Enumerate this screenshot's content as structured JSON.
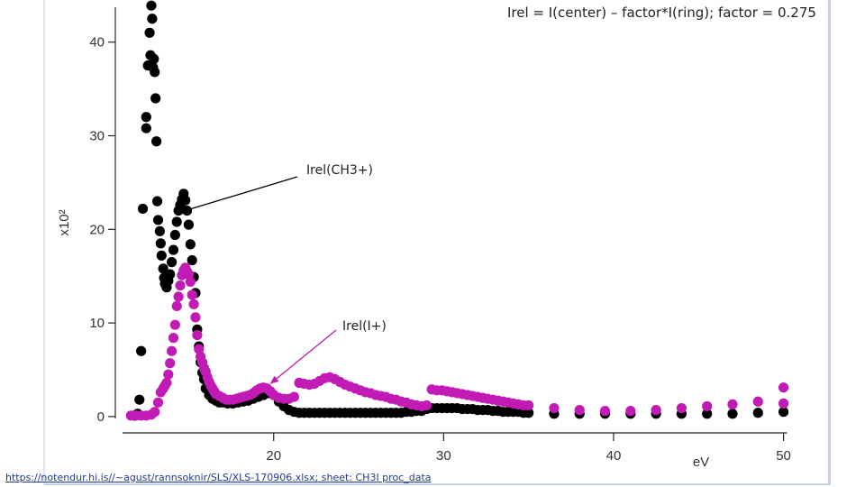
{
  "title": "Irel = I(center) – factor*I(ring); factor = 0.275",
  "footer_link": "https://notendur.hi.is//~agust/rannsoknir/SLS/XLS-170906.xlsx; sheet: CH3I proc_data",
  "chart_data": {
    "type": "scatter",
    "title": "Irel = I(center) – factor*I(ring); factor = 0.275",
    "xlabel": "eV",
    "ylabel": "x10²",
    "y_multiplier": "x10²",
    "xlim": [
      11,
      50.5
    ],
    "ylim": [
      -0.3,
      44.5
    ],
    "x_ticks": [
      20,
      30,
      40,
      50
    ],
    "y_ticks": [
      0,
      10,
      20,
      30,
      40
    ],
    "grid": false,
    "annotations": [
      {
        "text": "Irel(CH3+)",
        "points_to": [
          14.6,
          21.9
        ]
      },
      {
        "text": "Irel(I+)",
        "points_to": [
          19.8,
          3.5
        ]
      }
    ],
    "series": [
      {
        "name": "Irel(CH3+)",
        "color": "#000000",
        "points": [
          [
            11.8,
            0.1
          ],
          [
            12.0,
            0.3
          ],
          [
            12.1,
            1.8
          ],
          [
            12.2,
            7.0
          ],
          [
            12.3,
            22.2
          ],
          [
            12.5,
            30.8
          ],
          [
            12.5,
            32.0
          ],
          [
            12.6,
            37.5
          ],
          [
            12.7,
            41.0
          ],
          [
            12.75,
            38.6
          ],
          [
            12.8,
            43.9
          ],
          [
            12.85,
            42.5
          ],
          [
            12.9,
            37.3
          ],
          [
            12.95,
            38.2
          ],
          [
            13.0,
            36.8
          ],
          [
            13.05,
            34.0
          ],
          [
            13.1,
            29.4
          ],
          [
            13.15,
            23.0
          ],
          [
            13.2,
            21.0
          ],
          [
            13.3,
            19.8
          ],
          [
            13.35,
            18.5
          ],
          [
            13.4,
            17.2
          ],
          [
            13.5,
            15.8
          ],
          [
            13.55,
            14.8
          ],
          [
            13.6,
            14.2
          ],
          [
            13.7,
            13.8
          ],
          [
            13.8,
            14.5
          ],
          [
            13.9,
            15.2
          ],
          [
            14.0,
            16.5
          ],
          [
            14.1,
            17.8
          ],
          [
            14.2,
            19.4
          ],
          [
            14.3,
            20.8
          ],
          [
            14.4,
            22.0
          ],
          [
            14.5,
            22.6
          ],
          [
            14.6,
            23.2
          ],
          [
            14.7,
            23.8
          ],
          [
            14.8,
            23.1
          ],
          [
            14.9,
            22.0
          ],
          [
            15.0,
            20.5
          ],
          [
            15.1,
            18.4
          ],
          [
            15.2,
            16.7
          ],
          [
            15.3,
            14.9
          ],
          [
            15.4,
            13.2
          ],
          [
            15.5,
            9.3
          ],
          [
            15.6,
            7.5
          ],
          [
            15.7,
            5.8
          ],
          [
            15.8,
            4.7
          ],
          [
            15.9,
            4.0
          ],
          [
            16.0,
            3.0
          ],
          [
            16.2,
            2.3
          ],
          [
            16.4,
            1.9
          ],
          [
            16.6,
            1.7
          ],
          [
            16.8,
            1.5
          ],
          [
            17.0,
            1.5
          ],
          [
            17.3,
            1.4
          ],
          [
            17.6,
            1.4
          ],
          [
            17.9,
            1.5
          ],
          [
            18.2,
            1.6
          ],
          [
            18.5,
            1.7
          ],
          [
            18.8,
            1.9
          ],
          [
            19.1,
            2.1
          ],
          [
            19.4,
            2.3
          ],
          [
            19.7,
            2.5
          ],
          [
            20.0,
            2.3
          ],
          [
            20.3,
            1.6
          ],
          [
            20.6,
            1.1
          ],
          [
            20.9,
            0.7
          ],
          [
            21.2,
            0.5
          ],
          [
            21.5,
            0.4
          ],
          [
            21.8,
            0.4
          ],
          [
            22.1,
            0.4
          ],
          [
            22.4,
            0.4
          ],
          [
            22.7,
            0.4
          ],
          [
            23.0,
            0.4
          ],
          [
            23.3,
            0.4
          ],
          [
            23.6,
            0.4
          ],
          [
            23.9,
            0.4
          ],
          [
            24.2,
            0.4
          ],
          [
            24.5,
            0.4
          ],
          [
            24.8,
            0.4
          ],
          [
            25.1,
            0.4
          ],
          [
            25.4,
            0.4
          ],
          [
            25.7,
            0.4
          ],
          [
            26.0,
            0.4
          ],
          [
            26.3,
            0.4
          ],
          [
            26.6,
            0.4
          ],
          [
            26.9,
            0.4
          ],
          [
            27.2,
            0.4
          ],
          [
            27.5,
            0.4
          ],
          [
            27.8,
            0.5
          ],
          [
            28.1,
            0.5
          ],
          [
            28.4,
            0.6
          ],
          [
            28.7,
            0.6
          ],
          [
            29.0,
            0.8
          ],
          [
            29.3,
            0.9
          ],
          [
            29.6,
            0.9
          ],
          [
            29.9,
            0.9
          ],
          [
            30.2,
            0.9
          ],
          [
            30.5,
            0.9
          ],
          [
            30.8,
            0.9
          ],
          [
            31.1,
            0.8
          ],
          [
            31.4,
            0.8
          ],
          [
            31.7,
            0.8
          ],
          [
            32.0,
            0.7
          ],
          [
            32.3,
            0.7
          ],
          [
            32.6,
            0.7
          ],
          [
            32.9,
            0.6
          ],
          [
            33.2,
            0.6
          ],
          [
            33.5,
            0.5
          ],
          [
            33.8,
            0.5
          ],
          [
            34.1,
            0.5
          ],
          [
            34.4,
            0.5
          ],
          [
            34.7,
            0.4
          ],
          [
            35.0,
            0.4
          ],
          [
            36.5,
            0.3
          ],
          [
            38.0,
            0.3
          ],
          [
            39.5,
            0.3
          ],
          [
            41.0,
            0.3
          ],
          [
            42.5,
            0.3
          ],
          [
            44.0,
            0.3
          ],
          [
            45.5,
            0.3
          ],
          [
            47.0,
            0.3
          ],
          [
            48.5,
            0.4
          ],
          [
            50.0,
            0.5
          ]
        ]
      },
      {
        "name": "Irel(I+)",
        "color": "#c21ab5",
        "points": [
          [
            11.6,
            0.1
          ],
          [
            11.9,
            0.1
          ],
          [
            12.2,
            0.1
          ],
          [
            12.5,
            0.1
          ],
          [
            12.8,
            0.2
          ],
          [
            13.0,
            0.5
          ],
          [
            13.2,
            1.5
          ],
          [
            13.35,
            2.6
          ],
          [
            13.5,
            3.0
          ],
          [
            13.6,
            3.3
          ],
          [
            13.7,
            3.6
          ],
          [
            13.8,
            4.5
          ],
          [
            13.9,
            5.7
          ],
          [
            14.0,
            7.0
          ],
          [
            14.1,
            8.4
          ],
          [
            14.2,
            9.8
          ],
          [
            14.3,
            11.8
          ],
          [
            14.4,
            12.8
          ],
          [
            14.5,
            14.0
          ],
          [
            14.6,
            15.1
          ],
          [
            14.7,
            15.6
          ],
          [
            14.8,
            15.9
          ],
          [
            14.9,
            15.5
          ],
          [
            15.0,
            15.2
          ],
          [
            15.1,
            14.4
          ],
          [
            15.2,
            13.0
          ],
          [
            15.3,
            12.0
          ],
          [
            15.4,
            10.6
          ],
          [
            15.5,
            8.7
          ],
          [
            15.6,
            7.2
          ],
          [
            15.7,
            6.4
          ],
          [
            15.8,
            5.8
          ],
          [
            15.9,
            5.2
          ],
          [
            16.0,
            4.8
          ],
          [
            16.1,
            4.2
          ],
          [
            16.2,
            3.7
          ],
          [
            16.3,
            3.3
          ],
          [
            16.4,
            3.0
          ],
          [
            16.5,
            2.7
          ],
          [
            16.6,
            2.4
          ],
          [
            16.8,
            2.2
          ],
          [
            17.0,
            2.0
          ],
          [
            17.2,
            1.8
          ],
          [
            17.4,
            1.8
          ],
          [
            17.6,
            1.8
          ],
          [
            17.8,
            1.9
          ],
          [
            18.0,
            2.0
          ],
          [
            18.2,
            2.1
          ],
          [
            18.4,
            2.2
          ],
          [
            18.6,
            2.3
          ],
          [
            18.8,
            2.5
          ],
          [
            19.0,
            2.8
          ],
          [
            19.2,
            3.0
          ],
          [
            19.4,
            3.1
          ],
          [
            19.6,
            3.0
          ],
          [
            19.8,
            2.7
          ],
          [
            20.0,
            2.3
          ],
          [
            20.3,
            2.0
          ],
          [
            20.6,
            1.9
          ],
          [
            20.9,
            1.9
          ],
          [
            21.2,
            2.1
          ],
          [
            21.5,
            3.6
          ],
          [
            21.8,
            3.5
          ],
          [
            22.1,
            3.4
          ],
          [
            22.4,
            3.5
          ],
          [
            22.7,
            3.8
          ],
          [
            23.0,
            4.1
          ],
          [
            23.3,
            4.2
          ],
          [
            23.6,
            4.0
          ],
          [
            23.9,
            3.7
          ],
          [
            24.2,
            3.4
          ],
          [
            24.5,
            3.2
          ],
          [
            24.8,
            3.0
          ],
          [
            25.1,
            2.8
          ],
          [
            25.4,
            2.6
          ],
          [
            25.7,
            2.5
          ],
          [
            26.0,
            2.3
          ],
          [
            26.3,
            2.2
          ],
          [
            26.6,
            2.1
          ],
          [
            26.9,
            1.9
          ],
          [
            27.2,
            1.8
          ],
          [
            27.5,
            1.6
          ],
          [
            27.8,
            1.5
          ],
          [
            28.1,
            1.3
          ],
          [
            28.4,
            1.2
          ],
          [
            28.7,
            1.1
          ],
          [
            29.0,
            1.2
          ],
          [
            29.3,
            2.9
          ],
          [
            29.6,
            2.8
          ],
          [
            29.9,
            2.8
          ],
          [
            30.2,
            2.7
          ],
          [
            30.5,
            2.6
          ],
          [
            30.8,
            2.5
          ],
          [
            31.1,
            2.4
          ],
          [
            31.4,
            2.3
          ],
          [
            31.7,
            2.2
          ],
          [
            32.0,
            2.1
          ],
          [
            32.3,
            2.0
          ],
          [
            32.6,
            1.9
          ],
          [
            32.9,
            1.8
          ],
          [
            33.2,
            1.7
          ],
          [
            33.5,
            1.6
          ],
          [
            33.8,
            1.5
          ],
          [
            34.1,
            1.4
          ],
          [
            34.4,
            1.3
          ],
          [
            34.7,
            1.2
          ],
          [
            35.0,
            1.2
          ],
          [
            36.5,
            0.9
          ],
          [
            38.0,
            0.7
          ],
          [
            39.5,
            0.6
          ],
          [
            41.0,
            0.6
          ],
          [
            42.5,
            0.7
          ],
          [
            44.0,
            0.9
          ],
          [
            45.5,
            1.1
          ],
          [
            47.0,
            1.3
          ],
          [
            48.5,
            1.6
          ],
          [
            50.0,
            1.4
          ],
          [
            50.0,
            3.1
          ]
        ]
      }
    ]
  }
}
